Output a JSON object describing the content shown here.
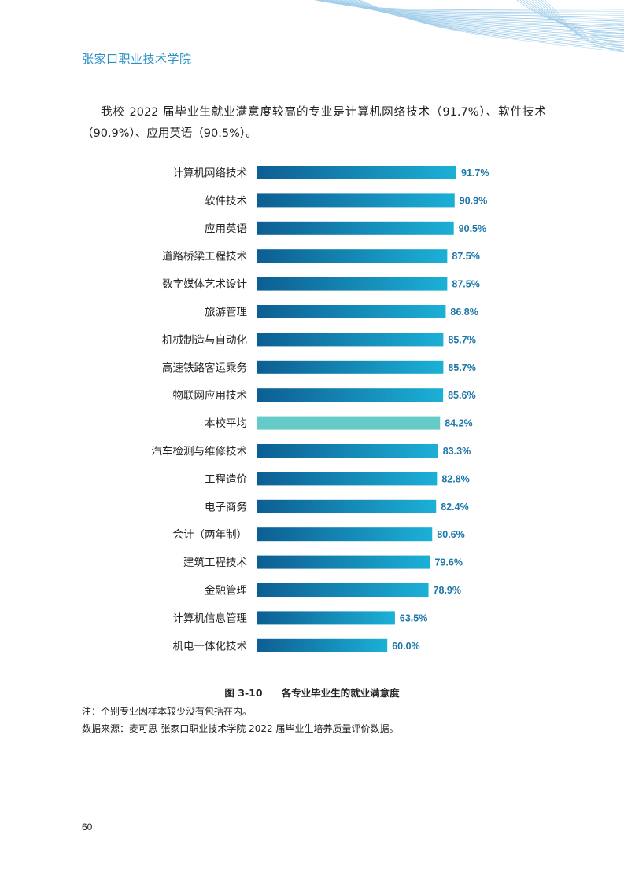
{
  "header": {
    "school": "张家口职业技术学院"
  },
  "intro_text": "我校 2022 届毕业生就业满意度较高的专业是计算机网络技术（91.7%）、软件技术（90.9%）、应用英语（90.5%）。",
  "chart_data": {
    "type": "bar",
    "orientation": "horizontal",
    "categories": [
      "计算机网络技术",
      "软件技术",
      "应用英语",
      "道路桥梁工程技术",
      "数字媒体艺术设计",
      "旅游管理",
      "机械制造与自动化",
      "高速铁路客运乘务",
      "物联网应用技术",
      "本校平均",
      "汽车检测与维修技术",
      "工程造价",
      "电子商务",
      "会计（两年制）",
      "建筑工程技术",
      "金融管理",
      "计算机信息管理",
      "机电一体化技术"
    ],
    "values": [
      91.7,
      90.9,
      90.5,
      87.5,
      87.5,
      86.8,
      85.7,
      85.7,
      85.6,
      84.2,
      83.3,
      82.8,
      82.4,
      80.6,
      79.6,
      78.9,
      63.5,
      60.0
    ],
    "value_labels": [
      "91.7%",
      "90.9%",
      "90.5%",
      "87.5%",
      "87.5%",
      "86.8%",
      "85.7%",
      "85.7%",
      "85.6%",
      "84.2%",
      "83.3%",
      "82.8%",
      "82.4%",
      "80.6%",
      "79.6%",
      "78.9%",
      "63.5%",
      "60.0%"
    ],
    "highlight_category": "本校平均",
    "xlim": [
      0,
      100
    ],
    "grid": false,
    "bar_colors": {
      "gradient_start": "#0d5e92",
      "gradient_end": "#1cb0d6",
      "highlight": "#66cbc8",
      "value_text": "#1d77a8"
    }
  },
  "caption": {
    "number": "图 3-10",
    "title": "各专业毕业生的就业满意度"
  },
  "note": "注：个别专业因样本较少没有包括在内。",
  "source": "数据来源：麦可思-张家口职业技术学院 2022 届毕业生培养质量评价数据。",
  "page_number": "60"
}
